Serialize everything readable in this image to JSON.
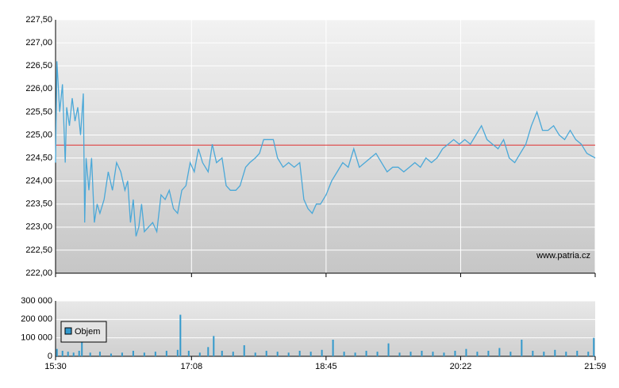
{
  "chart_data": [
    {
      "type": "line",
      "watermark": "www.patria.cz",
      "reference_line": {
        "value": 224.78,
        "color": "#e03030"
      },
      "xlim": [
        930,
        1319
      ],
      "xticks": [
        {
          "value": 930,
          "label": "15:30"
        },
        {
          "value": 1028,
          "label": "17:08"
        },
        {
          "value": 1125,
          "label": "18:45"
        },
        {
          "value": 1222,
          "label": "20:22"
        },
        {
          "value": 1319,
          "label": "21:59"
        }
      ],
      "ylim": [
        222.0,
        227.5
      ],
      "yticks": [
        {
          "value": 222.0,
          "label": "222,00"
        },
        {
          "value": 222.5,
          "label": "222,50"
        },
        {
          "value": 223.0,
          "label": "223,00"
        },
        {
          "value": 223.5,
          "label": "223,50"
        },
        {
          "value": 224.0,
          "label": "224,00"
        },
        {
          "value": 224.5,
          "label": "224,50"
        },
        {
          "value": 225.0,
          "label": "225,00"
        },
        {
          "value": 225.5,
          "label": "225,50"
        },
        {
          "value": 226.0,
          "label": "226,00"
        },
        {
          "value": 226.5,
          "label": "226,50"
        },
        {
          "value": 227.0,
          "label": "227,00"
        },
        {
          "value": 227.5,
          "label": "227,50"
        }
      ],
      "grid": true,
      "color": "#4aa8d8",
      "x": [
        930,
        931,
        933,
        935,
        937,
        938,
        940,
        942,
        944,
        946,
        948,
        950,
        951,
        952,
        954,
        956,
        958,
        960,
        962,
        965,
        968,
        971,
        974,
        977,
        980,
        982,
        984,
        986,
        988,
        990,
        992,
        994,
        997,
        1000,
        1003,
        1006,
        1009,
        1012,
        1015,
        1018,
        1021,
        1024,
        1027,
        1030,
        1033,
        1036,
        1040,
        1043,
        1046,
        1050,
        1053,
        1056,
        1060,
        1063,
        1067,
        1070,
        1074,
        1077,
        1080,
        1083,
        1087,
        1090,
        1094,
        1098,
        1102,
        1106,
        1109,
        1112,
        1115,
        1118,
        1121,
        1125,
        1129,
        1133,
        1137,
        1141,
        1145,
        1149,
        1153,
        1157,
        1161,
        1165,
        1169,
        1173,
        1177,
        1181,
        1185,
        1189,
        1193,
        1197,
        1201,
        1205,
        1209,
        1213,
        1217,
        1221,
        1225,
        1229,
        1233,
        1237,
        1241,
        1245,
        1249,
        1253,
        1257,
        1261,
        1265,
        1269,
        1273,
        1277,
        1281,
        1285,
        1289,
        1293,
        1297,
        1301,
        1305,
        1309,
        1313,
        1319
      ],
      "values": [
        224.4,
        226.6,
        225.5,
        226.1,
        224.4,
        225.6,
        225.2,
        225.8,
        225.3,
        225.6,
        225.0,
        225.9,
        223.1,
        224.5,
        223.8,
        224.5,
        223.1,
        223.5,
        223.3,
        223.6,
        224.2,
        223.8,
        224.4,
        224.2,
        223.8,
        224.0,
        223.1,
        223.6,
        222.8,
        223.0,
        223.5,
        222.9,
        223.0,
        223.1,
        222.9,
        223.7,
        223.6,
        223.8,
        223.4,
        223.3,
        223.8,
        223.9,
        224.4,
        224.2,
        224.7,
        224.4,
        224.2,
        224.8,
        224.4,
        224.5,
        223.9,
        223.8,
        223.8,
        223.9,
        224.3,
        224.4,
        224.5,
        224.6,
        224.9,
        224.9,
        224.9,
        224.5,
        224.3,
        224.4,
        224.3,
        224.4,
        223.6,
        223.4,
        223.3,
        223.5,
        223.5,
        223.7,
        224.0,
        224.2,
        224.4,
        224.3,
        224.7,
        224.3,
        224.4,
        224.5,
        224.6,
        224.4,
        224.2,
        224.3,
        224.3,
        224.2,
        224.3,
        224.4,
        224.3,
        224.5,
        224.4,
        224.5,
        224.7,
        224.8,
        224.9,
        224.8,
        224.9,
        224.8,
        225.0,
        225.2,
        224.9,
        224.8,
        224.7,
        224.9,
        224.5,
        224.4,
        224.6,
        224.8,
        225.2,
        225.5,
        225.1,
        225.1,
        225.2,
        225.0,
        224.9,
        225.1,
        224.9,
        224.8,
        224.6,
        224.5
      ]
    },
    {
      "type": "bar",
      "legend": "Objem",
      "legend_position": "left",
      "color": "#3399cc",
      "xlim": [
        930,
        1319
      ],
      "ylim": [
        0,
        300000
      ],
      "yticks": [
        {
          "value": 0,
          "label": "0"
        },
        {
          "value": 100000,
          "label": "100 000"
        },
        {
          "value": 200000,
          "label": "200 000"
        },
        {
          "value": 300000,
          "label": "300 000"
        }
      ],
      "grid": true,
      "x": [
        931,
        935,
        939,
        943,
        947,
        949,
        955,
        962,
        970,
        978,
        986,
        994,
        1002,
        1010,
        1018,
        1020,
        1026,
        1034,
        1040,
        1044,
        1050,
        1058,
        1066,
        1074,
        1082,
        1090,
        1098,
        1106,
        1114,
        1122,
        1130,
        1138,
        1146,
        1154,
        1162,
        1170,
        1178,
        1186,
        1194,
        1202,
        1210,
        1218,
        1226,
        1234,
        1242,
        1250,
        1258,
        1266,
        1274,
        1282,
        1290,
        1298,
        1306,
        1314,
        1318
      ],
      "values": [
        40000,
        30000,
        25000,
        20000,
        30000,
        90000,
        20000,
        25000,
        15000,
        20000,
        30000,
        20000,
        25000,
        30000,
        35000,
        225000,
        30000,
        20000,
        50000,
        110000,
        30000,
        25000,
        60000,
        20000,
        30000,
        25000,
        20000,
        30000,
        25000,
        35000,
        90000,
        25000,
        20000,
        30000,
        25000,
        70000,
        20000,
        25000,
        30000,
        25000,
        20000,
        30000,
        40000,
        25000,
        30000,
        45000,
        25000,
        90000,
        30000,
        25000,
        35000,
        25000,
        30000,
        25000,
        100000
      ]
    }
  ]
}
